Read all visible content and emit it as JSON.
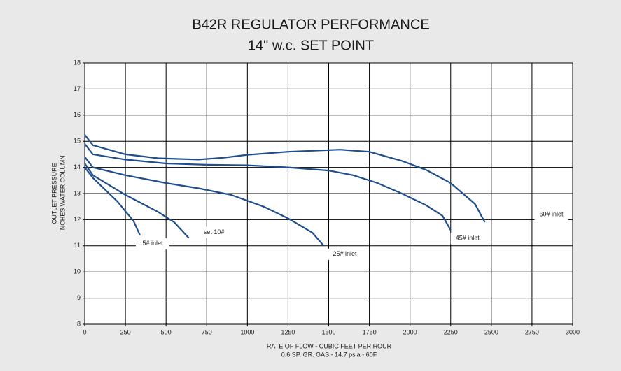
{
  "chart_data": {
    "type": "line",
    "title": "B42R REGULATOR PERFORMANCE",
    "subtitle": "14\" w.c. SET POINT",
    "x_label": "RATE OF FLOW - CUBIC FEET PER HOUR",
    "x_sublabel": "0.6 SP. GR. GAS - 14.7 psia - 60F",
    "y_label": [
      "OUTLET PRESSURE",
      "INCHES WATER COLUMN"
    ],
    "xlim": [
      0,
      3000
    ],
    "xticks": [
      0,
      250,
      500,
      750,
      1000,
      1250,
      1500,
      1750,
      2000,
      2250,
      2500,
      2750,
      3000
    ],
    "ylim": [
      8,
      18
    ],
    "yticks": [
      8,
      9,
      10,
      11,
      12,
      13,
      14,
      15,
      16,
      17,
      18
    ],
    "grid": true,
    "series": [
      {
        "name": "60# inlet",
        "color": "#1f4e8c",
        "x": [
          0,
          50,
          250,
          450,
          700,
          850,
          1000,
          1250,
          1570,
          1750,
          1950,
          2100,
          2250,
          2400,
          2460
        ],
        "values": [
          15.25,
          14.85,
          14.5,
          14.35,
          14.3,
          14.37,
          14.48,
          14.6,
          14.68,
          14.6,
          14.25,
          13.9,
          13.4,
          12.6,
          11.9
        ]
      },
      {
        "name": "45# inlet",
        "color": "#1f4e8c",
        "x": [
          0,
          50,
          250,
          500,
          750,
          1000,
          1250,
          1500,
          1650,
          1800,
          1950,
          2100,
          2200,
          2250
        ],
        "values": [
          14.9,
          14.5,
          14.3,
          14.15,
          14.1,
          14.08,
          14.0,
          13.88,
          13.7,
          13.4,
          13.0,
          12.55,
          12.15,
          11.6
        ]
      },
      {
        "name": "25# inlet",
        "color": "#1f4e8c",
        "x": [
          0,
          50,
          250,
          500,
          700,
          900,
          1100,
          1250,
          1400,
          1470
        ],
        "values": [
          14.4,
          14.0,
          13.7,
          13.4,
          13.2,
          12.95,
          12.5,
          12.05,
          11.5,
          11.0
        ]
      },
      {
        "name": "set 10#",
        "color": "#1f4e8c",
        "x": [
          0,
          50,
          250,
          450,
          550,
          640
        ],
        "values": [
          14.15,
          13.7,
          12.95,
          12.3,
          11.9,
          11.3
        ]
      },
      {
        "name": "5# inlet",
        "color": "#1f4e8c",
        "x": [
          0,
          50,
          200,
          300,
          340
        ],
        "values": [
          14.0,
          13.6,
          12.7,
          11.95,
          11.4
        ]
      }
    ]
  }
}
